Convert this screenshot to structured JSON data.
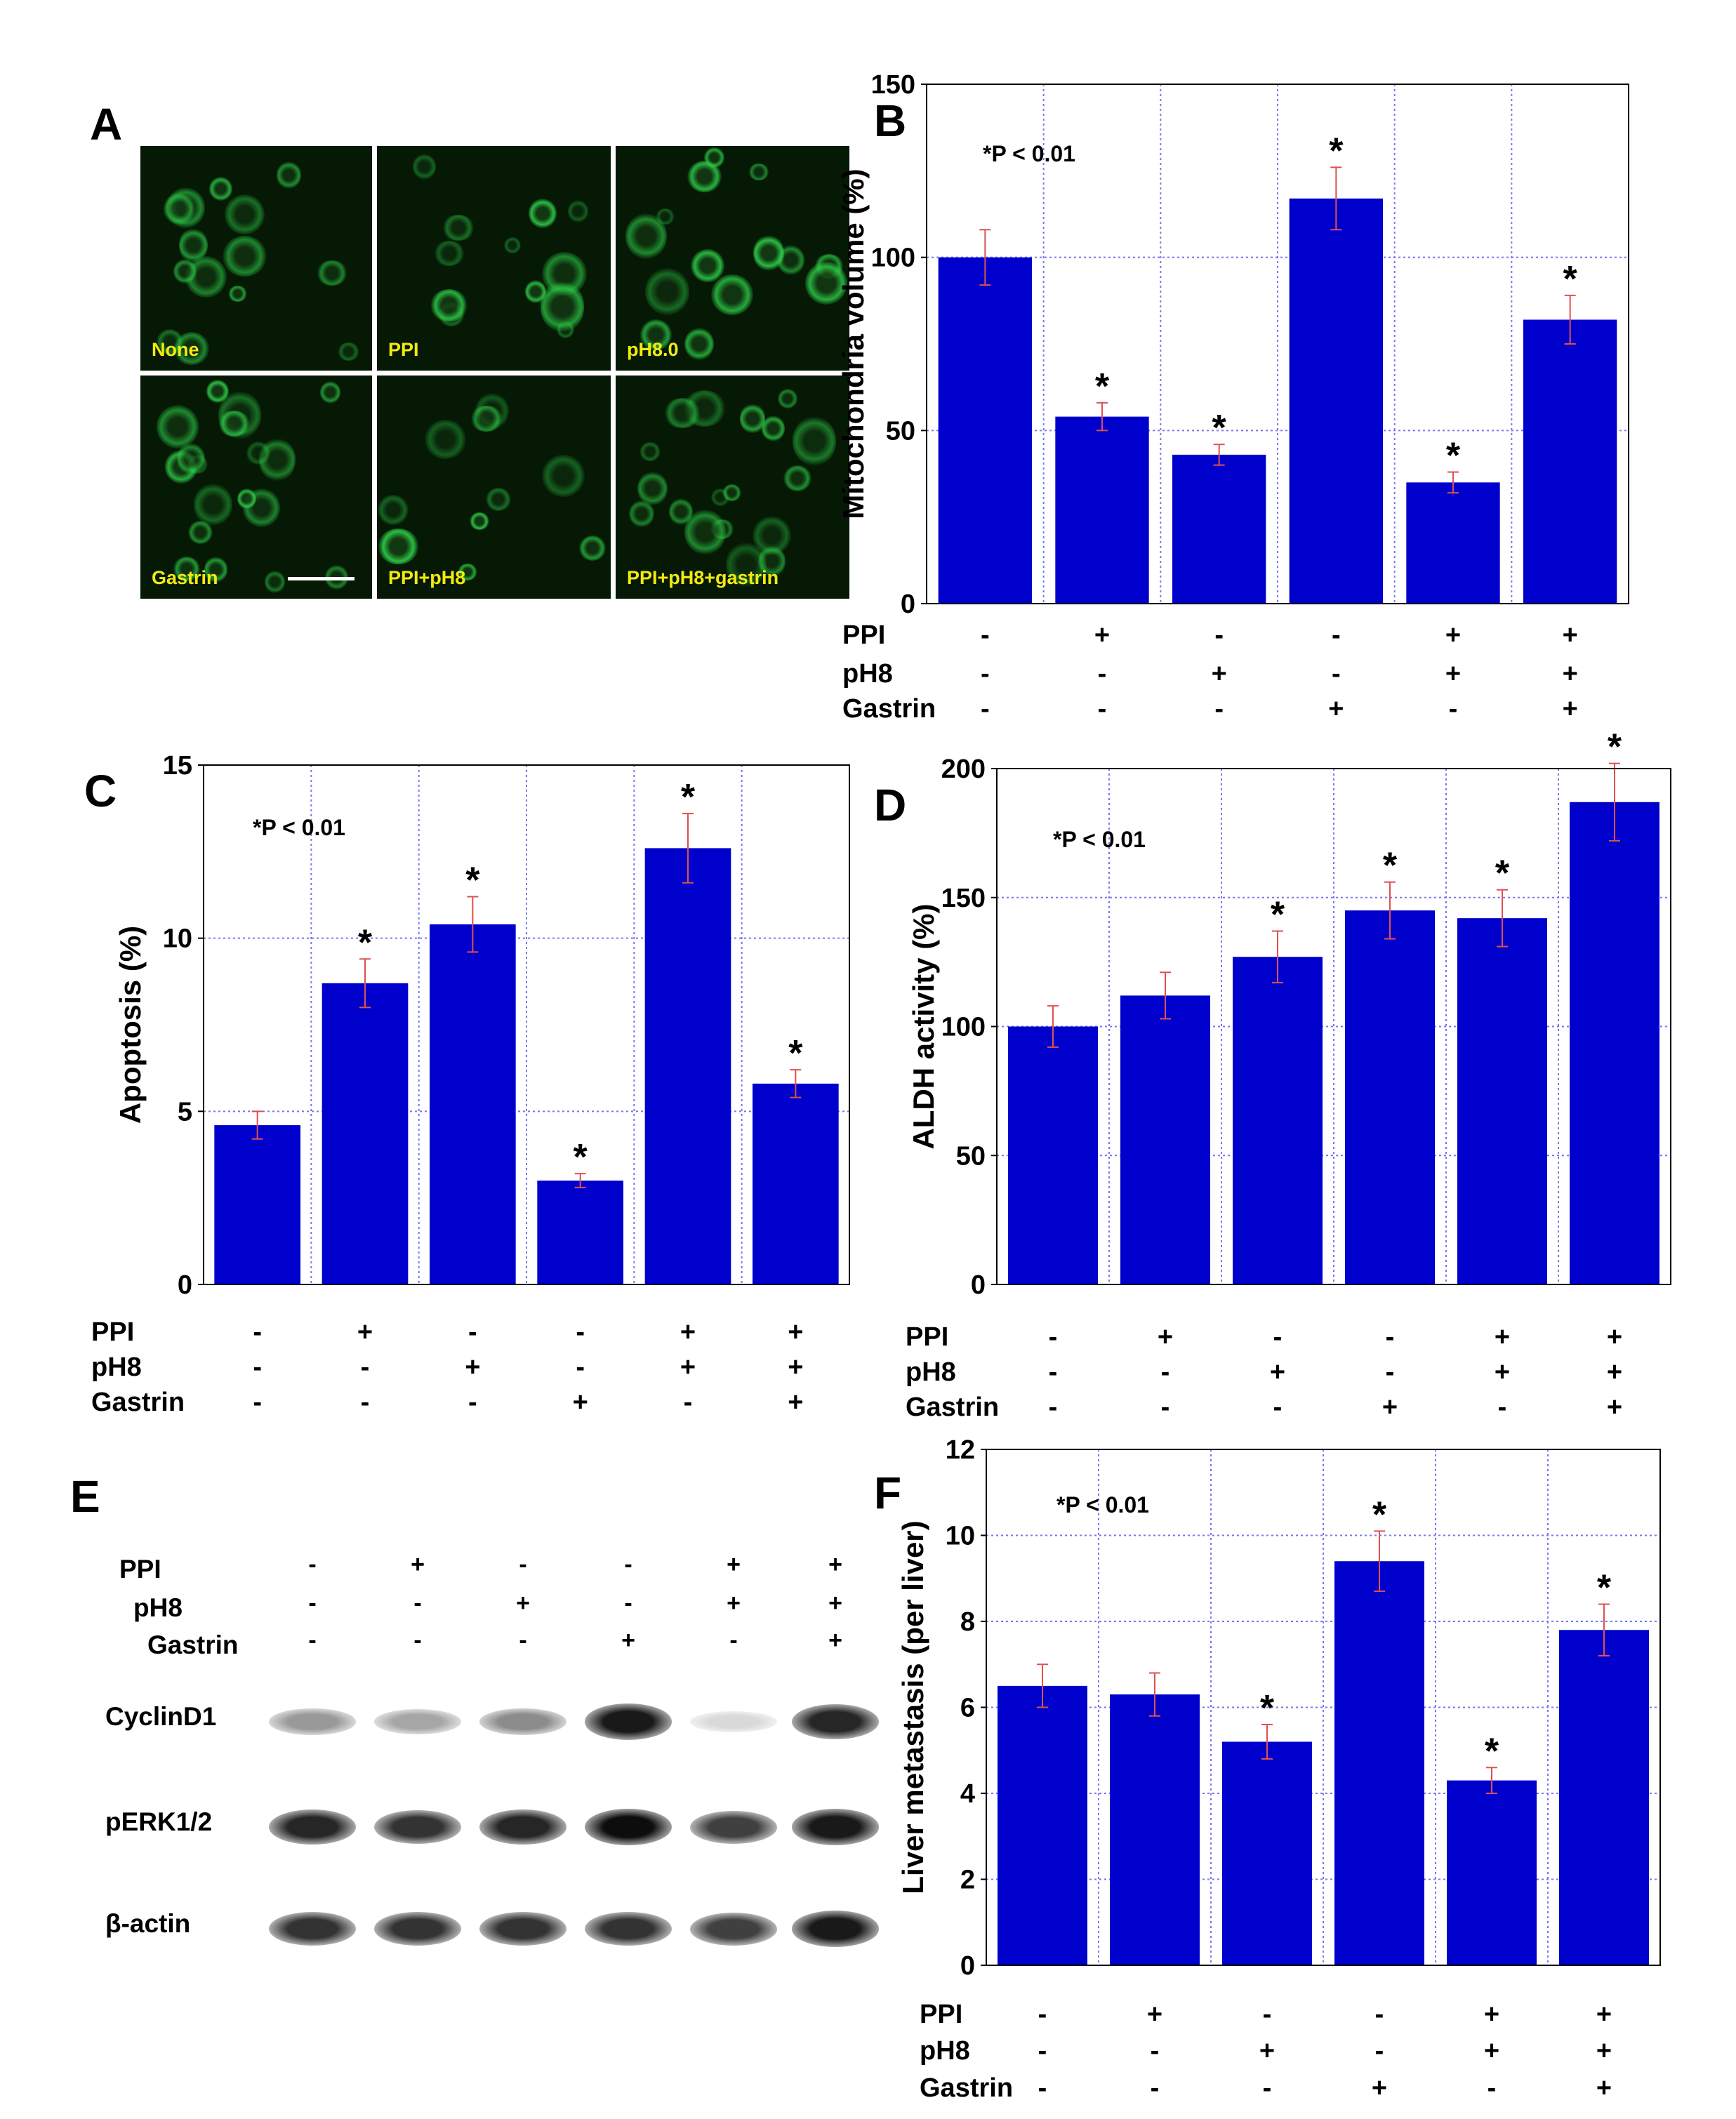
{
  "panel_labels": {
    "A": "A",
    "B": "B",
    "C": "C",
    "D": "D",
    "E": "E",
    "F": "F"
  },
  "panel_a": {
    "cells": [
      "None",
      "PPI",
      "pH8.0",
      "Gastrin",
      "PPI+pH8",
      "PPI+pH8+gastrin"
    ]
  },
  "treatment_rows": [
    "PPI",
    "pH8",
    "Gastrin"
  ],
  "treatment_signs": [
    [
      "-",
      "+",
      "-",
      "-",
      "+",
      "+"
    ],
    [
      "-",
      "-",
      "+",
      "-",
      "+",
      "+"
    ],
    [
      "-",
      "-",
      "-",
      "+",
      "-",
      "+"
    ]
  ],
  "colors": {
    "bar": "#0000cc",
    "error": "#e05050",
    "grid": "#7777ee",
    "fluorescence": "#2fd14a"
  },
  "chart_data": [
    {
      "id": "B",
      "type": "bar",
      "ylabel": "Mitochondria volume (%)",
      "annotation": "*P < 0.01",
      "ylim": [
        0,
        150
      ],
      "yticks": [
        0,
        50,
        100,
        150
      ],
      "grid": true,
      "values": [
        100,
        54,
        43,
        117,
        35,
        82
      ],
      "errors": [
        8,
        4,
        3,
        9,
        3,
        7
      ],
      "significance": [
        "",
        "*",
        "*",
        "*",
        "*",
        "*"
      ]
    },
    {
      "id": "C",
      "type": "bar",
      "ylabel": "Apoptosis (%)",
      "annotation": "*P < 0.01",
      "ylim": [
        0,
        15
      ],
      "yticks": [
        0,
        5,
        10,
        15
      ],
      "grid": true,
      "values": [
        4.6,
        8.7,
        10.4,
        3.0,
        12.6,
        5.8
      ],
      "errors": [
        0.4,
        0.7,
        0.8,
        0.2,
        1.0,
        0.4
      ],
      "significance": [
        "",
        "*",
        "*",
        "*",
        "*",
        "*"
      ]
    },
    {
      "id": "D",
      "type": "bar",
      "ylabel": "ALDH activity (%)",
      "annotation": "*P < 0.01",
      "ylim": [
        0,
        200
      ],
      "yticks": [
        0,
        50,
        100,
        150,
        200
      ],
      "grid": true,
      "values": [
        100,
        112,
        127,
        145,
        142,
        187
      ],
      "errors": [
        8,
        9,
        10,
        11,
        11,
        15
      ],
      "significance": [
        "",
        "",
        "*",
        "*",
        "*",
        "*"
      ]
    },
    {
      "id": "F",
      "type": "bar",
      "ylabel": "Liver metastasis (per liver)",
      "annotation": "*P < 0.01",
      "ylim": [
        0,
        12
      ],
      "yticks": [
        0,
        2,
        4,
        6,
        8,
        10,
        12
      ],
      "grid": true,
      "values": [
        6.5,
        6.3,
        5.2,
        9.4,
        4.3,
        7.8
      ],
      "errors": [
        0.5,
        0.5,
        0.4,
        0.7,
        0.3,
        0.6
      ],
      "significance": [
        "",
        "",
        "*",
        "*",
        "*",
        "*"
      ]
    }
  ],
  "panel_e": {
    "proteins": [
      "CyclinD1",
      "pERK1/2",
      "β-actin"
    ],
    "band_intensity": [
      [
        0.4,
        0.35,
        0.45,
        0.9,
        0.15,
        0.85
      ],
      [
        0.85,
        0.8,
        0.85,
        0.95,
        0.75,
        0.9
      ],
      [
        0.8,
        0.8,
        0.8,
        0.8,
        0.75,
        0.9
      ]
    ]
  }
}
